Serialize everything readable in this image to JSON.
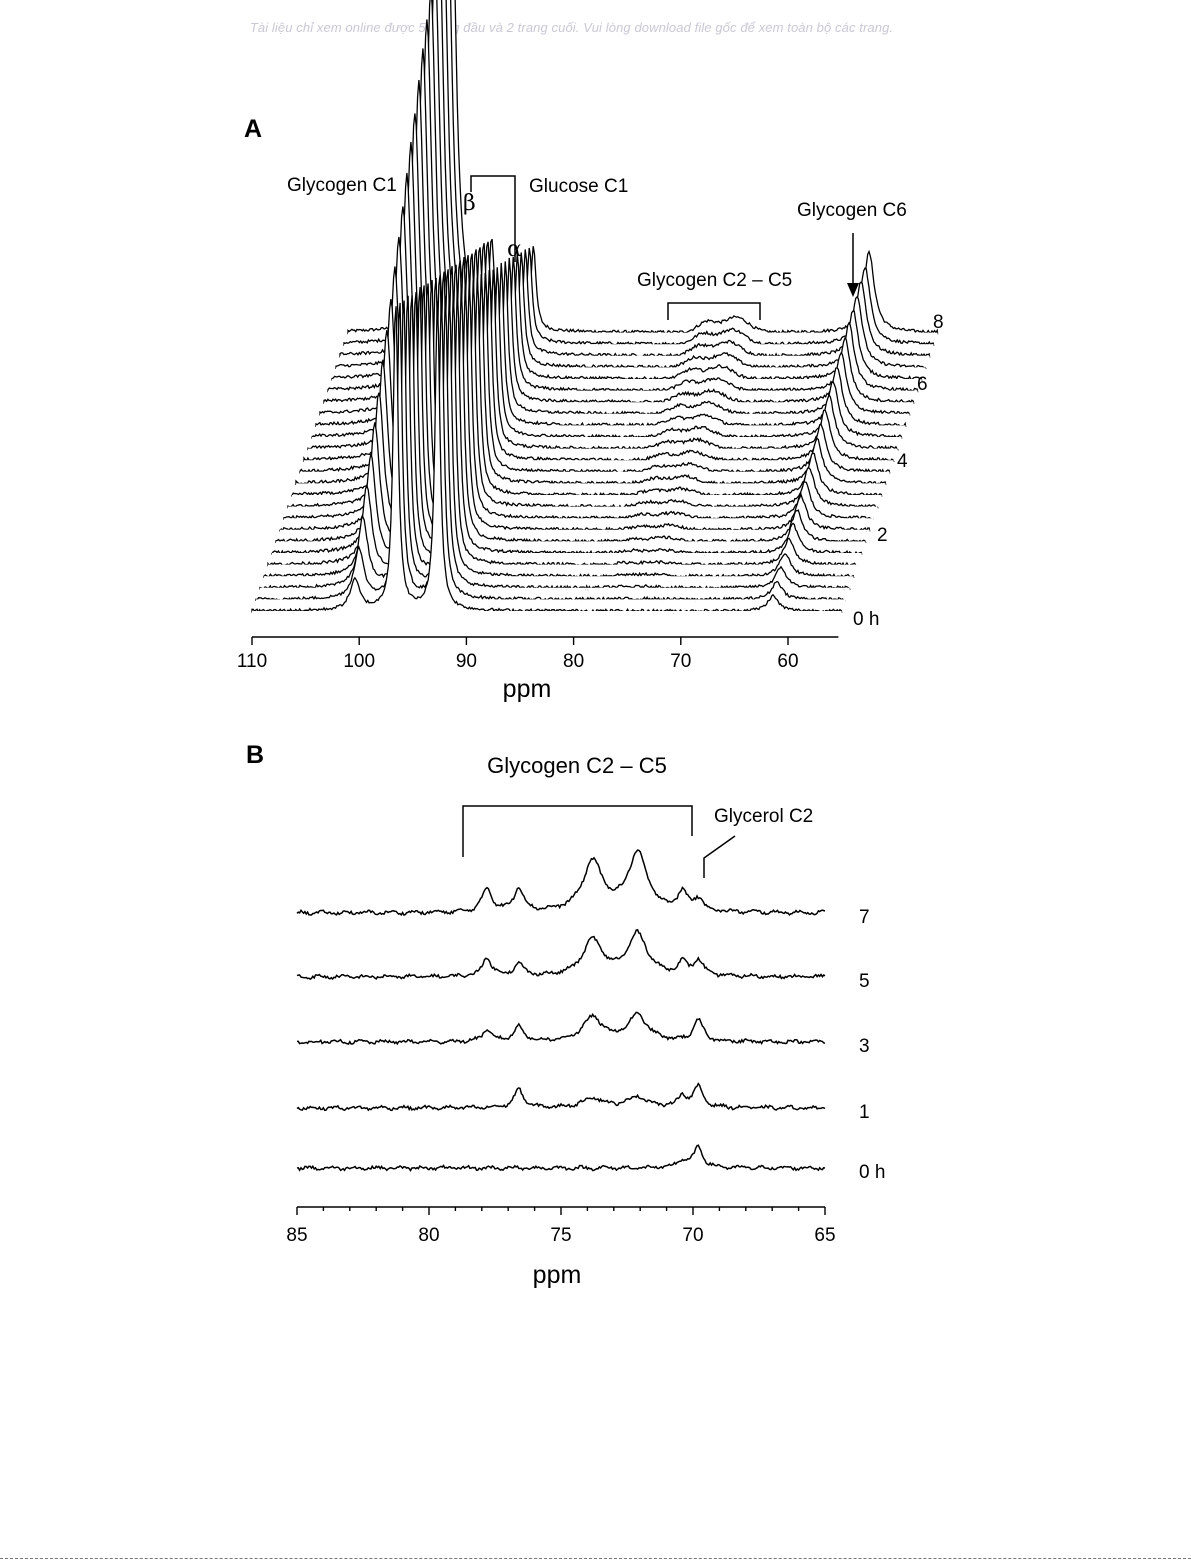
{
  "watermark": "Tài liệu chỉ xem online được 5 trang đầu và 2 trang cuối. Vui lòng download file gốc để xem toàn bộ các trang.",
  "colors": {
    "trace": "#000000",
    "background": "#ffffff",
    "watermark": "#c9c9d6"
  },
  "chart_data": [
    {
      "panel": "A",
      "type": "line",
      "style": "stacked 13C NMR spectra (waterfall)",
      "xlabel": "ppm",
      "xlim": [
        110,
        55
      ],
      "xticks": [
        110,
        100,
        90,
        80,
        70,
        60
      ],
      "x_reversed": true,
      "series_count": 25,
      "time_labels": [
        "0 h",
        "2",
        "4",
        "6",
        "8"
      ],
      "time_range_h": [
        0,
        8
      ],
      "annotations": {
        "glycogen_c1": "Glycogen C1",
        "glucose_c1": "Glucose C1",
        "beta": "β",
        "alpha": "α",
        "glycogen_c2_c5": "Glycogen C2 – C5",
        "glycogen_c6": "Glycogen C6"
      },
      "peaks": [
        {
          "name": "Glycogen C1",
          "ppm": 100.4,
          "height_first": 0.06,
          "height_last": 1.0
        },
        {
          "name": "Glucose C1 β",
          "ppm": 96.6,
          "height_first": 0.62,
          "height_last": 0.17
        },
        {
          "name": "Glucose C1 α",
          "ppm": 92.7,
          "height_first": 0.62,
          "height_last": 0.17
        },
        {
          "name": "Glycogen C6",
          "ppm": 61.4,
          "height_first": 0.03,
          "height_last": 0.16
        },
        {
          "name": "Glycogen C2 – C5",
          "ppm_range": [
            72,
            78
          ],
          "height_first": 0.0,
          "height_last": 0.03
        }
      ]
    },
    {
      "panel": "B",
      "type": "line",
      "style": "stacked 13C NMR spectra",
      "xlabel": "ppm",
      "xlim": [
        85,
        65
      ],
      "xticks": [
        85,
        80,
        75,
        70,
        65
      ],
      "x_reversed": true,
      "annotations": {
        "glycogen_c2_c5": "Glycogen C2 – C5",
        "glycerol_c2": "Glycerol C2"
      },
      "bracket_ppm": [
        78.7,
        70.0
      ],
      "series": [
        {
          "name": "0 h",
          "peaks": [
            {
              "ppm": 69.8,
              "height": 1.0
            },
            {
              "ppm": 70.4,
              "height": 0.35
            }
          ]
        },
        {
          "name": "1",
          "peaks": [
            {
              "ppm": 76.6,
              "height": 0.9
            },
            {
              "ppm": 73.8,
              "height": 0.5
            },
            {
              "ppm": 72.1,
              "height": 0.55
            },
            {
              "ppm": 69.8,
              "height": 1.0
            },
            {
              "ppm": 70.4,
              "height": 0.55
            }
          ]
        },
        {
          "name": "3",
          "peaks": [
            {
              "ppm": 77.8,
              "height": 0.55
            },
            {
              "ppm": 76.6,
              "height": 0.75
            },
            {
              "ppm": 73.8,
              "height": 1.2
            },
            {
              "ppm": 72.1,
              "height": 1.3
            },
            {
              "ppm": 69.8,
              "height": 1.05
            }
          ]
        },
        {
          "name": "5",
          "peaks": [
            {
              "ppm": 77.8,
              "height": 0.9
            },
            {
              "ppm": 76.6,
              "height": 0.6
            },
            {
              "ppm": 73.8,
              "height": 1.8
            },
            {
              "ppm": 72.1,
              "height": 2.1
            },
            {
              "ppm": 70.4,
              "height": 0.6
            },
            {
              "ppm": 69.8,
              "height": 0.75
            }
          ]
        },
        {
          "name": "7",
          "peaks": [
            {
              "ppm": 77.8,
              "height": 1.2
            },
            {
              "ppm": 76.6,
              "height": 1.2
            },
            {
              "ppm": 73.8,
              "height": 2.5
            },
            {
              "ppm": 72.1,
              "height": 2.9
            },
            {
              "ppm": 70.4,
              "height": 0.9
            },
            {
              "ppm": 69.8,
              "height": 0.6
            }
          ]
        }
      ]
    }
  ]
}
